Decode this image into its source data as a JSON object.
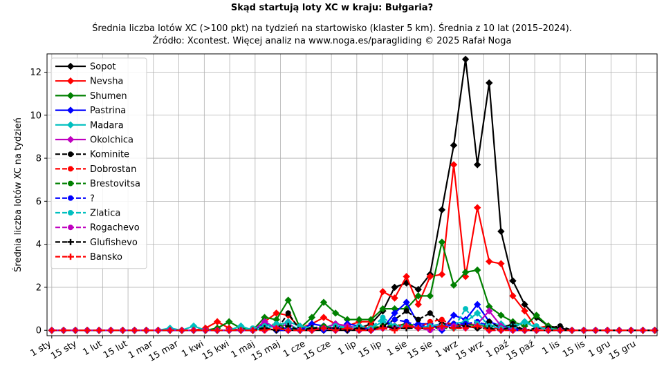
{
  "chart_data": {
    "type": "line",
    "title": "Skąd startują loty XC w kraju: Bułgaria?",
    "subtitle_lines": [
      "Średnia liczba lotów XC (>100 pkt) na tydzień na startowisko (klaster 5 km). Średnia z 10 lat (2015–2024).",
      "Źródło: Xcontest. Więcej analiz na www.noga.es/paragliding © 2025 Rafał Noga"
    ],
    "xlabel": "",
    "ylabel": "Średnia liczba lotów XC na tydzień",
    "x": [
      1,
      2,
      3,
      4,
      5,
      6,
      7,
      8,
      9,
      10,
      11,
      12,
      13,
      14,
      15,
      16,
      17,
      18,
      19,
      20,
      21,
      22,
      23,
      24,
      25,
      26,
      27,
      28,
      29,
      30,
      31,
      32,
      33,
      34,
      35,
      36,
      37,
      38,
      39,
      40,
      41,
      42,
      43,
      44,
      45,
      46,
      47,
      48,
      49,
      50,
      51,
      52
    ],
    "xticks": [
      1,
      3.15,
      5.3,
      7.45,
      9.6,
      11.75,
      13.9,
      16.05,
      18.2,
      20.35,
      22.5,
      24.65,
      26.8,
      28.95,
      31.1,
      33.25,
      35.4,
      37.55,
      39.7,
      41.85,
      44,
      46.15,
      48.3,
      50.45
    ],
    "xticklabels": [
      "1 sty",
      "15 sty",
      "1 lut",
      "15 lut",
      "1 mar",
      "15 mar",
      "1 kwi",
      "15 kwi",
      "1 maj",
      "15 maj",
      "1 cze",
      "15 cze",
      "1 lip",
      "15 lip",
      "1 sie",
      "15 sie",
      "1 wrz",
      "15 wrz",
      "1 paź",
      "15 paź",
      "1 lis",
      "15 lis",
      "1 gru",
      "15 gru"
    ],
    "xlim": [
      0.6,
      52.2
    ],
    "ylim": [
      -0.25,
      12.85
    ],
    "yticks": [
      0,
      2,
      4,
      6,
      8,
      10,
      12
    ],
    "yticklabels": [
      "0",
      "2",
      "4",
      "6",
      "8",
      "10",
      "12"
    ],
    "grid": true,
    "legend_position": "top-left",
    "series": [
      {
        "name": "Sopot",
        "color": "#000000",
        "linestyle": "solid",
        "marker": "diamond",
        "values": [
          0,
          0,
          0,
          0,
          0,
          0,
          0,
          0,
          0,
          0,
          0,
          0,
          0,
          0,
          0,
          0,
          0,
          0,
          0.1,
          0,
          0,
          0,
          0,
          0,
          0,
          0,
          0.1,
          0.3,
          0.9,
          2.0,
          2.2,
          1.9,
          2.6,
          5.6,
          8.6,
          12.6,
          7.7,
          11.5,
          4.6,
          2.3,
          1.2,
          0.6,
          0.2,
          0.1,
          0,
          0,
          0,
          0,
          0,
          0,
          0,
          0
        ]
      },
      {
        "name": "Nevsha",
        "color": "#ff0000",
        "linestyle": "solid",
        "marker": "diamond",
        "values": [
          0,
          0,
          0,
          0,
          0,
          0,
          0,
          0,
          0,
          0,
          0,
          0,
          0,
          0.1,
          0.4,
          0.1,
          0,
          0,
          0.4,
          0.8,
          0.7,
          0.1,
          0.3,
          0.6,
          0.3,
          0.2,
          0.4,
          0.4,
          1.8,
          1.5,
          2.5,
          1.2,
          2.5,
          2.6,
          7.7,
          2.5,
          5.7,
          3.2,
          3.1,
          1.6,
          0.9,
          0.1,
          0.2,
          0,
          0,
          0,
          0,
          0,
          0,
          0,
          0,
          0
        ]
      },
      {
        "name": "Shumen",
        "color": "#008000",
        "linestyle": "solid",
        "marker": "diamond",
        "values": [
          0,
          0,
          0,
          0,
          0,
          0,
          0,
          0,
          0,
          0,
          0,
          0,
          0,
          0,
          0.1,
          0.4,
          0.1,
          0,
          0.6,
          0.5,
          1.4,
          0.1,
          0.6,
          1.3,
          0.8,
          0.5,
          0.5,
          0.5,
          1.0,
          1.0,
          1.0,
          1.6,
          1.6,
          4.1,
          2.1,
          2.7,
          2.8,
          1.1,
          0.7,
          0.4,
          0.2,
          0.7,
          0.2,
          0,
          0,
          0,
          0,
          0,
          0,
          0,
          0,
          0
        ]
      },
      {
        "name": "Pastrina",
        "color": "#0000ff",
        "linestyle": "solid",
        "marker": "diamond",
        "values": [
          0,
          0,
          0,
          0,
          0,
          0,
          0,
          0,
          0,
          0,
          0,
          0,
          0,
          0,
          0,
          0,
          0,
          0,
          0.3,
          0.1,
          0.1,
          0,
          0.3,
          0.2,
          0.1,
          0.3,
          0.2,
          0,
          0.1,
          0.8,
          1.3,
          0.3,
          0.3,
          0,
          0.7,
          0.5,
          1.2,
          0.4,
          0.2,
          0.1,
          0,
          0,
          0,
          0,
          0,
          0,
          0,
          0,
          0,
          0,
          0,
          0
        ]
      },
      {
        "name": "Madara",
        "color": "#00bfbf",
        "linestyle": "solid",
        "marker": "diamond",
        "values": [
          0,
          0,
          0,
          0,
          0,
          0,
          0,
          0,
          0,
          0,
          0.1,
          0,
          0.2,
          0,
          0,
          0,
          0.2,
          0,
          0.1,
          0.2,
          0.4,
          0.2,
          0.1,
          0.1,
          0.3,
          0.1,
          0.2,
          0.1,
          0.4,
          0.2,
          0.2,
          0.1,
          0.2,
          0.3,
          0.3,
          0.4,
          0.8,
          0.2,
          0.3,
          0.1,
          0.4,
          0.1,
          0.1,
          0,
          0,
          0,
          0,
          0,
          0,
          0,
          0,
          0
        ]
      },
      {
        "name": "Okolchica",
        "color": "#bf00bf",
        "linestyle": "solid",
        "marker": "diamond",
        "values": [
          0,
          0,
          0,
          0,
          0,
          0,
          0,
          0,
          0,
          0,
          0,
          0,
          0,
          0,
          0,
          0,
          0,
          0,
          0.4,
          0.1,
          0.3,
          0,
          0.1,
          0.1,
          0.3,
          0.2,
          0.1,
          0,
          0.1,
          0.2,
          0.3,
          0.1,
          0.1,
          0.3,
          0.3,
          0.2,
          0.3,
          0.9,
          0.2,
          0,
          0,
          0,
          0,
          0,
          0,
          0,
          0,
          0,
          0,
          0,
          0,
          0
        ]
      },
      {
        "name": "Kominite",
        "color": "#000000",
        "linestyle": "dashed",
        "marker": "circle",
        "values": [
          0,
          0,
          0,
          0,
          0,
          0,
          0,
          0,
          0,
          0,
          0,
          0,
          0,
          0,
          0,
          0,
          0,
          0,
          0.1,
          0,
          0.8,
          0,
          0,
          0.1,
          0.1,
          0,
          0,
          0,
          0.2,
          0.5,
          0.9,
          0.5,
          0.8,
          0.3,
          0.3,
          0.2,
          0.1,
          0.4,
          0.1,
          0.3,
          0,
          0.1,
          0.1,
          0.2,
          0,
          0,
          0,
          0,
          0,
          0,
          0,
          0
        ]
      },
      {
        "name": "Dobrostan",
        "color": "#ff0000",
        "linestyle": "dashed",
        "marker": "circle",
        "values": [
          0,
          0,
          0,
          0,
          0,
          0,
          0,
          0,
          0,
          0,
          0,
          0,
          0,
          0,
          0,
          0,
          0,
          0,
          0,
          0.1,
          0,
          0,
          0,
          0.1,
          0.1,
          0,
          0.1,
          0.2,
          0.1,
          0.2,
          0.3,
          0.1,
          0.4,
          0.5,
          0.2,
          0.3,
          0.3,
          0.1,
          0.1,
          0,
          0,
          0,
          0,
          0,
          0,
          0,
          0,
          0,
          0,
          0,
          0,
          0
        ]
      },
      {
        "name": "Brestovitsa",
        "color": "#008000",
        "linestyle": "dashed",
        "marker": "circle",
        "values": [
          0,
          0,
          0,
          0,
          0,
          0,
          0,
          0,
          0,
          0,
          0,
          0,
          0,
          0,
          0,
          0,
          0,
          0,
          0.2,
          0.3,
          0.1,
          0,
          0.1,
          0.2,
          0.1,
          0.1,
          0.2,
          0.1,
          0.2,
          0.2,
          0.3,
          0.2,
          0.1,
          0.1,
          0.1,
          0.3,
          0.2,
          0.2,
          0.1,
          0,
          0,
          0,
          0,
          0,
          0,
          0,
          0,
          0,
          0,
          0,
          0,
          0
        ]
      },
      {
        "name": "?",
        "color": "#0000ff",
        "linestyle": "dashed",
        "marker": "circle",
        "values": [
          0,
          0,
          0,
          0,
          0,
          0,
          0,
          0,
          0,
          0,
          0,
          0,
          0,
          0,
          0,
          0,
          0,
          0,
          0.1,
          0,
          0,
          0,
          0.1,
          0,
          0.1,
          0,
          0.1,
          0,
          0.1,
          0.5,
          0.4,
          0.2,
          0.2,
          0.1,
          0.3,
          0.3,
          0.4,
          0.2,
          0.1,
          0,
          0,
          0,
          0,
          0,
          0,
          0,
          0,
          0,
          0,
          0,
          0,
          0
        ]
      },
      {
        "name": "Zlatica",
        "color": "#00bfbf",
        "linestyle": "dashed",
        "marker": "circle",
        "values": [
          0,
          0,
          0,
          0,
          0,
          0,
          0,
          0,
          0,
          0,
          0,
          0,
          0,
          0,
          0,
          0,
          0,
          0.1,
          0.2,
          0.3,
          0.3,
          0,
          0.1,
          0.1,
          0.2,
          0.1,
          0.2,
          0.1,
          0.6,
          0.2,
          0.2,
          0.1,
          0.2,
          0.2,
          0.1,
          1.0,
          0.3,
          0.2,
          0.1,
          0.2,
          0.4,
          0.2,
          0,
          0,
          0,
          0,
          0,
          0,
          0,
          0,
          0,
          0
        ]
      },
      {
        "name": "Rogachevo",
        "color": "#bf00bf",
        "linestyle": "dashed",
        "marker": "circle",
        "values": [
          0,
          0,
          0,
          0,
          0,
          0,
          0,
          0,
          0,
          0,
          0,
          0,
          0,
          0,
          0,
          0,
          0,
          0,
          0,
          0.1,
          0,
          0,
          0,
          0.1,
          0,
          0.1,
          0,
          0,
          0.1,
          0.1,
          0.2,
          0.1,
          0,
          0.1,
          0.2,
          0.1,
          0.2,
          0,
          0,
          0,
          0,
          0,
          0,
          0,
          0,
          0,
          0,
          0,
          0,
          0,
          0,
          0
        ]
      },
      {
        "name": "Glufishevo",
        "color": "#000000",
        "linestyle": "dashed",
        "marker": "plus",
        "values": [
          0,
          0,
          0,
          0,
          0,
          0,
          0,
          0,
          0,
          0,
          0,
          0,
          0,
          0,
          0,
          0,
          0,
          0,
          0.1,
          0,
          0.2,
          0,
          0.1,
          0.1,
          0.1,
          0,
          0.1,
          0,
          0.2,
          0.1,
          0.1,
          0.1,
          0.1,
          0.2,
          0.1,
          0.2,
          0.1,
          0.1,
          0,
          0.2,
          0,
          0,
          0,
          0,
          0,
          0,
          0,
          0,
          0,
          0,
          0,
          0
        ]
      },
      {
        "name": "Bansko",
        "color": "#ff0000",
        "linestyle": "dashed",
        "marker": "plus",
        "values": [
          0,
          0,
          0,
          0,
          0,
          0,
          0,
          0,
          0,
          0,
          0,
          0,
          0,
          0,
          0,
          0,
          0,
          0,
          0,
          0.1,
          0,
          0,
          0,
          0.1,
          0,
          0.1,
          0,
          0,
          0.1,
          0,
          0.2,
          0.1,
          0.1,
          0.2,
          0.1,
          0.1,
          0.2,
          0,
          0,
          0,
          0,
          0,
          0,
          0,
          0,
          0,
          0,
          0,
          0,
          0,
          0,
          0
        ]
      }
    ]
  }
}
